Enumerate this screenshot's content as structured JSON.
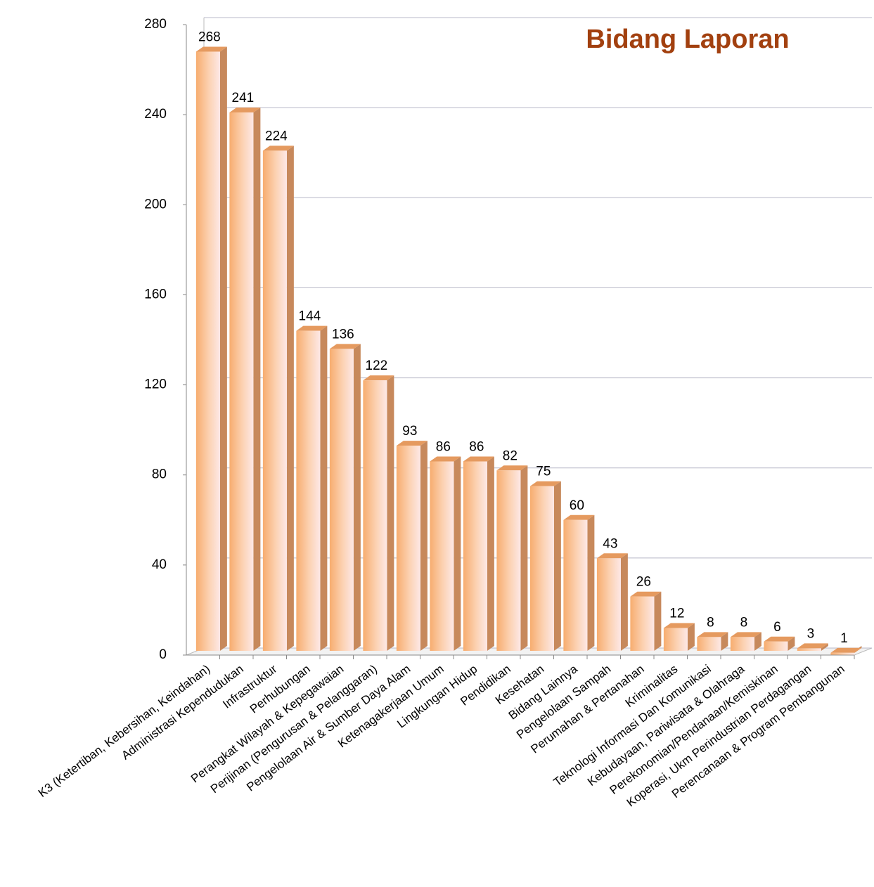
{
  "chart_data": {
    "type": "bar",
    "title": "Bidang Laporan",
    "categories": [
      "K3 (Ketertiban, Kebersihan, Keindahan)",
      "Administrasi Kependudukan",
      "Infrastruktur",
      "Perhubungan",
      "Perangkat Wilayah & Kepegawaian",
      "Perijinan (Pengurusan & Pelanggaran)",
      "Pengelolaan Air & Sumber Daya Alam",
      "Ketenagakerjaan Umum",
      "Lingkungan Hidup",
      "Pendidikan",
      "Kesehatan",
      "Bidang Lainnya",
      "Pengelolaan Sampah",
      "Perumahan & Pertanahan",
      "Kriminalitas",
      "Teknologi Informasi Dan Komunikasi",
      "Kebudayaan, Pariwisata & Olahraga",
      "Perekonomian/Pendanaan/Kemiskinan",
      "Koperasi, Ukm Perindustrian Perdagangan",
      "Perencanaan & Program Pembangunan"
    ],
    "values": [
      268,
      241,
      224,
      144,
      136,
      122,
      93,
      86,
      86,
      82,
      75,
      60,
      43,
      26,
      12,
      8,
      8,
      6,
      3,
      1
    ],
    "color": "#f9b47a",
    "ylim": [
      0,
      280
    ],
    "yticks": [
      0,
      40,
      80,
      120,
      160,
      200,
      240,
      280
    ],
    "grid": true
  }
}
